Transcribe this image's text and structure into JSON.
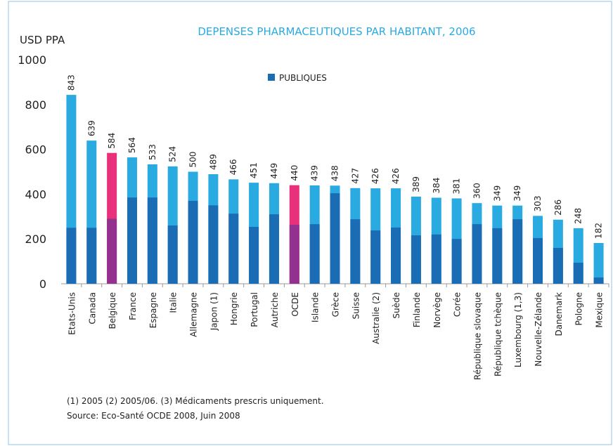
{
  "chart_data": {
    "type": "bar",
    "title": "DEPENSES  PHARMACEUTIQUES PAR HABITANT, 2006",
    "y_axis_label": "USD PPA",
    "categories": [
      "Etats-Unis",
      "Canada",
      "Belgique",
      "France",
      "Espagne",
      "Italie",
      "Allemagne",
      "Japon (1)",
      "Hongrie",
      "Portugal",
      "Autriche",
      "OCDE",
      "Islande",
      "Grèce",
      "Suisse",
      "Australie (2)",
      "Suède",
      "Finlande",
      "Norvège",
      "Corée",
      "République slovaque",
      "République tchèque",
      "Luxembourg (1,3)",
      "Nouvelle-Zélande",
      "Danemark",
      "Pologne",
      "Mexique"
    ],
    "values": [
      843,
      639,
      584,
      564,
      533,
      524,
      500,
      489,
      466,
      451,
      449,
      440,
      439,
      438,
      427,
      426,
      426,
      389,
      384,
      381,
      360,
      349,
      349,
      303,
      286,
      248,
      182
    ],
    "color": "#29abe2",
    "series": [
      {
        "name": "PUBLIQUES",
        "color": "#1a6db5",
        "values": [
          250,
          250,
          290,
          385,
          385,
          260,
          370,
          350,
          313,
          254,
          310,
          263,
          266,
          404,
          288,
          238,
          251,
          216,
          220,
          200,
          266,
          248,
          288,
          204,
          160,
          94,
          28
        ]
      }
    ],
    "highlight": [
      2,
      11
    ],
    "highlight_color": "#e8317a",
    "highlight_public_color": "#93318f",
    "ylim": [
      0,
      1000
    ],
    "yticks": [
      0,
      200,
      400,
      600,
      800,
      1000
    ],
    "notes": [
      "(1) 2005 (2) 2005/06. (3) Médicaments prescris uniquement.",
      "Source: Eco-Santé OCDE 2008, Juin 2008"
    ]
  }
}
